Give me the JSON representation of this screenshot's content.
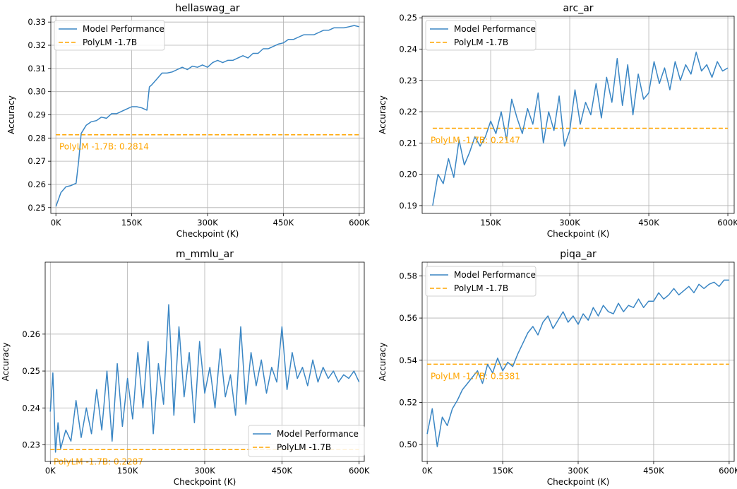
{
  "colors": {
    "model": "#3a86c4",
    "baseline": "#FFA500"
  },
  "chart_data": [
    {
      "type": "line",
      "title": "hellaswag_ar",
      "xlabel": "Checkpoint (K)",
      "ylabel": "Accuracy",
      "xlim": [
        -10,
        610
      ],
      "ylim": [
        0.2475,
        0.3325
      ],
      "xticks": [
        0,
        150,
        300,
        450,
        600
      ],
      "xtick_labels": [
        "0K",
        "150K",
        "300K",
        "450K",
        "600K"
      ],
      "yticks": [
        0.25,
        0.26,
        0.27,
        0.28,
        0.29,
        0.3,
        0.31,
        0.32,
        0.33
      ],
      "ytick_labels": [
        "0.25",
        "0.26",
        "0.27",
        "0.28",
        "0.29",
        "0.30",
        "0.31",
        "0.32",
        "0.33"
      ],
      "grid": true,
      "legend_position": "upper-left",
      "series": [
        {
          "name": "Model Performance",
          "x": [
            0,
            10,
            20,
            30,
            40,
            45,
            50,
            60,
            70,
            80,
            90,
            100,
            110,
            120,
            130,
            140,
            150,
            160,
            170,
            180,
            185,
            190,
            200,
            210,
            220,
            230,
            240,
            250,
            260,
            270,
            280,
            290,
            300,
            310,
            320,
            330,
            340,
            350,
            360,
            370,
            380,
            390,
            400,
            410,
            420,
            430,
            440,
            450,
            460,
            470,
            480,
            490,
            500,
            510,
            520,
            530,
            540,
            550,
            560,
            570,
            580,
            590,
            600
          ],
          "y": [
            0.2505,
            0.2565,
            0.259,
            0.2595,
            0.2605,
            0.27,
            0.282,
            0.2855,
            0.287,
            0.2875,
            0.289,
            0.2885,
            0.2905,
            0.2905,
            0.2915,
            0.2925,
            0.2935,
            0.2935,
            0.293,
            0.292,
            0.302,
            0.303,
            0.3055,
            0.308,
            0.308,
            0.3085,
            0.3095,
            0.3105,
            0.3095,
            0.311,
            0.3105,
            0.3115,
            0.3105,
            0.3125,
            0.3135,
            0.3125,
            0.3135,
            0.3135,
            0.3145,
            0.3155,
            0.3145,
            0.3165,
            0.3165,
            0.3185,
            0.3185,
            0.3195,
            0.3205,
            0.321,
            0.3225,
            0.3225,
            0.3235,
            0.3245,
            0.3245,
            0.3245,
            0.3255,
            0.3265,
            0.3265,
            0.3275,
            0.3275,
            0.3275,
            0.328,
            0.3285,
            0.328
          ]
        },
        {
          "name": "PolyLM -1.7B",
          "baseline": 0.2814
        }
      ],
      "annotation": "PolyLM -1.7B: 0.2814"
    },
    {
      "type": "line",
      "title": "arc_ar",
      "xlabel": "Checkpoint (K)",
      "ylabel": "Accuracy",
      "xlim": [
        20,
        612
      ],
      "ylim": [
        0.1875,
        0.2505
      ],
      "xticks": [
        150,
        300,
        450,
        600
      ],
      "xtick_labels": [
        "150K",
        "300K",
        "450K",
        "600K"
      ],
      "yticks": [
        0.19,
        0.2,
        0.21,
        0.22,
        0.23,
        0.24,
        0.25
      ],
      "ytick_labels": [
        "0.19",
        "0.20",
        "0.21",
        "0.22",
        "0.23",
        "0.24",
        "0.25"
      ],
      "grid": true,
      "legend_position": "upper-left",
      "series": [
        {
          "name": "Model Performance",
          "x": [
            40,
            50,
            60,
            70,
            80,
            90,
            100,
            110,
            120,
            130,
            140,
            150,
            160,
            170,
            180,
            190,
            200,
            210,
            220,
            230,
            240,
            250,
            260,
            270,
            280,
            290,
            300,
            310,
            320,
            330,
            340,
            350,
            360,
            370,
            380,
            390,
            400,
            410,
            420,
            430,
            440,
            450,
            460,
            470,
            480,
            490,
            500,
            510,
            520,
            530,
            540,
            550,
            560,
            570,
            580,
            590,
            600
          ],
          "y": [
            0.19,
            0.2,
            0.197,
            0.205,
            0.199,
            0.211,
            0.203,
            0.207,
            0.212,
            0.209,
            0.212,
            0.217,
            0.213,
            0.22,
            0.211,
            0.224,
            0.218,
            0.213,
            0.221,
            0.216,
            0.226,
            0.21,
            0.22,
            0.214,
            0.225,
            0.209,
            0.214,
            0.227,
            0.216,
            0.223,
            0.219,
            0.229,
            0.218,
            0.231,
            0.223,
            0.237,
            0.222,
            0.235,
            0.219,
            0.232,
            0.224,
            0.226,
            0.236,
            0.229,
            0.234,
            0.227,
            0.236,
            0.23,
            0.235,
            0.232,
            0.239,
            0.233,
            0.235,
            0.231,
            0.236,
            0.233,
            0.234
          ]
        },
        {
          "name": "PolyLM -1.7B",
          "baseline": 0.2147
        }
      ],
      "annotation": "PolyLM -1.7B: 0.2147"
    },
    {
      "type": "line",
      "title": "m_mmlu_ar",
      "xlabel": "Checkpoint (K)",
      "ylabel": "Accuracy",
      "xlim": [
        -10,
        610
      ],
      "ylim": [
        0.2255,
        0.2795
      ],
      "xticks": [
        0,
        150,
        300,
        450,
        600
      ],
      "xtick_labels": [
        "0K",
        "150K",
        "300K",
        "450K",
        "600K"
      ],
      "yticks": [
        0.23,
        0.24,
        0.25,
        0.26
      ],
      "ytick_labels": [
        "0.23",
        "0.24",
        "0.25",
        "0.26"
      ],
      "grid": true,
      "legend_position": "lower-right",
      "series": [
        {
          "name": "Model Performance",
          "x": [
            0,
            5,
            10,
            15,
            20,
            30,
            40,
            50,
            60,
            70,
            80,
            90,
            100,
            110,
            120,
            130,
            140,
            150,
            160,
            170,
            180,
            190,
            200,
            210,
            220,
            230,
            240,
            250,
            260,
            270,
            280,
            290,
            300,
            310,
            320,
            330,
            340,
            350,
            360,
            370,
            380,
            390,
            400,
            410,
            420,
            430,
            440,
            450,
            460,
            470,
            480,
            490,
            500,
            510,
            520,
            530,
            540,
            550,
            560,
            570,
            580,
            590,
            600
          ],
          "y": [
            0.239,
            0.2495,
            0.228,
            0.236,
            0.229,
            0.234,
            0.231,
            0.242,
            0.232,
            0.24,
            0.233,
            0.245,
            0.234,
            0.25,
            0.231,
            0.252,
            0.235,
            0.248,
            0.237,
            0.255,
            0.24,
            0.258,
            0.233,
            0.252,
            0.241,
            0.268,
            0.238,
            0.262,
            0.243,
            0.255,
            0.236,
            0.258,
            0.244,
            0.251,
            0.24,
            0.256,
            0.243,
            0.249,
            0.238,
            0.262,
            0.241,
            0.255,
            0.246,
            0.253,
            0.244,
            0.251,
            0.247,
            0.262,
            0.245,
            0.255,
            0.248,
            0.251,
            0.246,
            0.253,
            0.247,
            0.251,
            0.248,
            0.25,
            0.247,
            0.249,
            0.248,
            0.25,
            0.247
          ]
        },
        {
          "name": "PolyLM -1.7B",
          "baseline": 0.2287
        }
      ],
      "annotation": "PolyLM -1.7B: 0.2287"
    },
    {
      "type": "line",
      "title": "piqa_ar",
      "xlabel": "Checkpoint (K)",
      "ylabel": "Accuracy",
      "xlim": [
        -10,
        610
      ],
      "ylim": [
        0.492,
        0.5865
      ],
      "xticks": [
        0,
        150,
        300,
        450,
        600
      ],
      "xtick_labels": [
        "0K",
        "150K",
        "300K",
        "450K",
        "600K"
      ],
      "yticks": [
        0.5,
        0.52,
        0.54,
        0.56,
        0.58
      ],
      "ytick_labels": [
        "0.50",
        "0.52",
        "0.54",
        "0.56",
        "0.58"
      ],
      "grid": true,
      "legend_position": "upper-left",
      "series": [
        {
          "name": "Model Performance",
          "x": [
            0,
            10,
            20,
            30,
            40,
            50,
            60,
            70,
            80,
            90,
            100,
            110,
            120,
            130,
            140,
            150,
            160,
            170,
            180,
            190,
            200,
            210,
            220,
            230,
            240,
            250,
            260,
            270,
            280,
            290,
            300,
            310,
            320,
            330,
            340,
            350,
            360,
            370,
            380,
            390,
            400,
            410,
            420,
            430,
            440,
            450,
            460,
            470,
            480,
            490,
            500,
            510,
            520,
            530,
            540,
            550,
            560,
            570,
            580,
            590,
            600
          ],
          "y": [
            0.505,
            0.517,
            0.499,
            0.513,
            0.509,
            0.517,
            0.521,
            0.526,
            0.529,
            0.532,
            0.535,
            0.529,
            0.538,
            0.534,
            0.541,
            0.535,
            0.539,
            0.537,
            0.543,
            0.548,
            0.553,
            0.556,
            0.552,
            0.558,
            0.561,
            0.555,
            0.559,
            0.563,
            0.558,
            0.561,
            0.557,
            0.562,
            0.559,
            0.565,
            0.561,
            0.566,
            0.563,
            0.562,
            0.567,
            0.563,
            0.566,
            0.565,
            0.569,
            0.565,
            0.568,
            0.568,
            0.572,
            0.569,
            0.571,
            0.574,
            0.571,
            0.573,
            0.575,
            0.572,
            0.576,
            0.574,
            0.576,
            0.577,
            0.575,
            0.578,
            0.578
          ]
        },
        {
          "name": "PolyLM -1.7B",
          "baseline": 0.5381
        }
      ],
      "annotation": "PolyLM -1.7B: 0.5381"
    }
  ]
}
